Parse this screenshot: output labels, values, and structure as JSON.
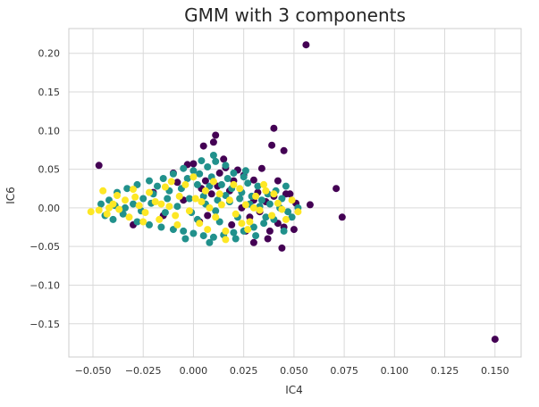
{
  "chart_data": {
    "type": "scatter",
    "title": "GMM with 3 components",
    "xlabel": "IC4",
    "ylabel": "IC6",
    "xlim": [
      -0.062,
      0.163
    ],
    "ylim": [
      -0.193,
      0.232
    ],
    "xticks": [
      -0.05,
      -0.025,
      0.0,
      0.025,
      0.05,
      0.075,
      0.1,
      0.125,
      0.15
    ],
    "xtick_labels": [
      "−0.050",
      "−0.025",
      "0.000",
      "0.025",
      "0.050",
      "0.075",
      "0.100",
      "0.125",
      "0.150"
    ],
    "yticks": [
      -0.15,
      -0.1,
      -0.05,
      0.0,
      0.05,
      0.1,
      0.15,
      0.2
    ],
    "ytick_labels": [
      "−0.15",
      "−0.10",
      "−0.05",
      "0.00",
      "0.05",
      "0.10",
      "0.15",
      "0.20"
    ],
    "grid": true,
    "colors": {
      "cluster0": "#440154",
      "cluster1": "#21918c",
      "cluster2": "#fde725",
      "grid": "#d9d9d9",
      "axes_edge": "#cccccc"
    },
    "series": [
      {
        "cluster": 0,
        "color": "#440154",
        "points": [
          [
            0.056,
            0.211
          ],
          [
            0.15,
            -0.17
          ],
          [
            0.04,
            0.103
          ],
          [
            0.039,
            0.081
          ],
          [
            0.045,
            0.074
          ],
          [
            0.011,
            0.094
          ],
          [
            0.005,
            0.08
          ],
          [
            0.01,
            0.085
          ],
          [
            -0.047,
            0.055
          ],
          [
            0.034,
            0.051
          ],
          [
            0.071,
            0.025
          ],
          [
            0.074,
            -0.012
          ],
          [
            0.058,
            0.004
          ],
          [
            0.051,
            0.006
          ],
          [
            0.046,
            0.018
          ],
          [
            0.048,
            0.018
          ],
          [
            0.03,
            -0.045
          ],
          [
            0.037,
            -0.04
          ],
          [
            0.044,
            -0.052
          ],
          [
            0.05,
            -0.028
          ],
          [
            0.045,
            -0.025
          ],
          [
            0.015,
            0.063
          ],
          [
            0.013,
            0.045
          ],
          [
            0.022,
            0.049
          ],
          [
            0.0,
            0.057
          ],
          [
            0.016,
            0.052
          ],
          [
            -0.003,
            0.056
          ],
          [
            0.02,
            0.035
          ],
          [
            0.025,
            0.042
          ],
          [
            0.03,
            0.036
          ],
          [
            0.028,
            -0.012
          ],
          [
            0.032,
            0.02
          ],
          [
            0.04,
            0.015
          ],
          [
            0.042,
            0.035
          ],
          [
            0.018,
            0.022
          ],
          [
            0.006,
            0.035
          ],
          [
            0.009,
            0.018
          ],
          [
            0.003,
            -0.018
          ],
          [
            -0.008,
            0.033
          ],
          [
            -0.02,
            0.02
          ],
          [
            -0.015,
            -0.01
          ],
          [
            -0.005,
            0.01
          ],
          [
            0.012,
            0.028
          ],
          [
            0.024,
            0.0
          ],
          [
            0.033,
            -0.005
          ],
          [
            0.036,
            0.008
          ],
          [
            0.026,
            -0.03
          ],
          [
            0.019,
            -0.022
          ],
          [
            0.007,
            -0.01
          ],
          [
            -0.03,
            -0.022
          ],
          [
            -0.01,
            0.045
          ],
          [
            0.004,
            0.025
          ],
          [
            0.03,
            0.01
          ],
          [
            0.042,
            -0.02
          ],
          [
            0.038,
            -0.03
          ]
        ]
      },
      {
        "cluster": 1,
        "color": "#21918c",
        "points": [
          [
            0.01,
            0.068
          ],
          [
            0.004,
            0.061
          ],
          [
            0.011,
            0.06
          ],
          [
            0.016,
            0.055
          ],
          [
            -0.005,
            0.051
          ],
          [
            0.0,
            0.048
          ],
          [
            0.007,
            0.053
          ],
          [
            0.02,
            0.045
          ],
          [
            0.025,
            0.04
          ],
          [
            -0.01,
            0.044
          ],
          [
            -0.015,
            0.038
          ],
          [
            -0.022,
            0.035
          ],
          [
            -0.028,
            0.03
          ],
          [
            -0.033,
            0.025
          ],
          [
            -0.038,
            0.02
          ],
          [
            -0.042,
            0.01
          ],
          [
            -0.046,
            0.005
          ],
          [
            -0.044,
            -0.01
          ],
          [
            -0.04,
            -0.015
          ],
          [
            -0.035,
            -0.008
          ],
          [
            -0.03,
            0.005
          ],
          [
            -0.025,
            0.012
          ],
          [
            -0.02,
            0.018
          ],
          [
            -0.012,
            0.022
          ],
          [
            -0.006,
            0.025
          ],
          [
            0.002,
            0.03
          ],
          [
            0.008,
            0.028
          ],
          [
            0.014,
            0.03
          ],
          [
            0.019,
            0.025
          ],
          [
            0.024,
            0.02
          ],
          [
            0.029,
            0.015
          ],
          [
            0.034,
            0.01
          ],
          [
            0.038,
            0.005
          ],
          [
            0.043,
            0.0
          ],
          [
            0.047,
            -0.005
          ],
          [
            0.04,
            -0.015
          ],
          [
            0.035,
            -0.02
          ],
          [
            0.03,
            -0.025
          ],
          [
            0.025,
            -0.03
          ],
          [
            0.02,
            -0.032
          ],
          [
            0.015,
            -0.035
          ],
          [
            0.01,
            -0.038
          ],
          [
            0.005,
            -0.036
          ],
          [
            0.0,
            -0.033
          ],
          [
            -0.005,
            -0.03
          ],
          [
            -0.01,
            -0.028
          ],
          [
            -0.016,
            -0.025
          ],
          [
            -0.022,
            -0.022
          ],
          [
            -0.028,
            -0.018
          ],
          [
            0.032,
            0.028
          ],
          [
            0.027,
            0.032
          ],
          [
            0.036,
            -0.012
          ],
          [
            0.044,
            0.012
          ],
          [
            0.052,
            0.0
          ],
          [
            0.049,
            -0.012
          ],
          [
            0.012,
            0.01
          ],
          [
            0.006,
            0.005
          ],
          [
            -0.002,
            0.012
          ],
          [
            -0.008,
            0.002
          ],
          [
            0.018,
            0.008
          ],
          [
            0.022,
            -0.012
          ],
          [
            0.013,
            -0.018
          ],
          [
            0.002,
            -0.015
          ],
          [
            -0.014,
            -0.006
          ],
          [
            -0.021,
            0.006
          ],
          [
            -0.034,
            0.0
          ],
          [
            0.041,
            0.022
          ],
          [
            0.046,
            0.028
          ],
          [
            0.026,
            0.048
          ],
          [
            0.003,
            0.044
          ],
          [
            -0.003,
            0.038
          ],
          [
            0.009,
            0.04
          ],
          [
            0.017,
            0.038
          ],
          [
            -0.018,
            0.028
          ],
          [
            0.031,
            -0.036
          ],
          [
            0.021,
            -0.04
          ],
          [
            0.008,
            -0.045
          ],
          [
            -0.004,
            -0.04
          ],
          [
            0.045,
            -0.03
          ],
          [
            0.016,
            0.016
          ],
          [
            -0.026,
            -0.004
          ],
          [
            -0.039,
            0.003
          ],
          [
            0.033,
            0.002
          ],
          [
            0.028,
            0.005
          ],
          [
            0.005,
            0.015
          ],
          [
            0.011,
            -0.004
          ],
          [
            -0.001,
            -0.006
          ],
          [
            -0.013,
            0.012
          ],
          [
            0.023,
            0.012
          ],
          [
            0.037,
            0.018
          ]
        ]
      },
      {
        "cluster": 2,
        "color": "#fde725",
        "points": [
          [
            -0.051,
            -0.005
          ],
          [
            -0.047,
            -0.003
          ],
          [
            -0.045,
            0.022
          ],
          [
            -0.043,
            -0.008
          ],
          [
            -0.04,
            0.005
          ],
          [
            -0.037,
            -0.002
          ],
          [
            -0.034,
            0.01
          ],
          [
            -0.032,
            -0.012
          ],
          [
            -0.029,
            0.014
          ],
          [
            -0.027,
            0.003
          ],
          [
            -0.024,
            -0.006
          ],
          [
            -0.022,
            0.02
          ],
          [
            -0.019,
            0.008
          ],
          [
            -0.017,
            -0.015
          ],
          [
            -0.014,
            0.027
          ],
          [
            -0.012,
            0.002
          ],
          [
            -0.009,
            -0.01
          ],
          [
            -0.007,
            0.015
          ],
          [
            -0.004,
            0.03
          ],
          [
            -0.002,
            -0.004
          ],
          [
            0.001,
            0.012
          ],
          [
            0.003,
            -0.02
          ],
          [
            0.006,
            0.022
          ],
          [
            0.008,
            0.0
          ],
          [
            0.011,
            -0.012
          ],
          [
            0.013,
            0.018
          ],
          [
            0.016,
            -0.03
          ],
          [
            0.018,
            0.01
          ],
          [
            0.021,
            -0.008
          ],
          [
            0.023,
            0.025
          ],
          [
            0.026,
            0.004
          ],
          [
            0.028,
            -0.018
          ],
          [
            0.031,
            0.015
          ],
          [
            0.033,
            -0.003
          ],
          [
            0.036,
            0.022
          ],
          [
            0.039,
            -0.01
          ],
          [
            0.042,
            0.006
          ],
          [
            0.046,
            -0.015
          ],
          [
            0.049,
            0.01
          ],
          [
            0.052,
            -0.005
          ],
          [
            0.016,
            -0.041
          ],
          [
            -0.03,
            0.024
          ],
          [
            -0.025,
            -0.018
          ],
          [
            0.01,
            0.034
          ],
          [
            0.02,
            0.03
          ],
          [
            0.0,
            0.04
          ],
          [
            -0.011,
            0.034
          ],
          [
            0.027,
            -0.028
          ],
          [
            0.035,
            0.03
          ],
          [
            -0.038,
            0.016
          ],
          [
            -0.042,
            0.0
          ],
          [
            0.004,
            0.008
          ],
          [
            0.014,
            0.004
          ],
          [
            -0.016,
            0.005
          ],
          [
            0.03,
            0.0
          ],
          [
            -0.008,
            -0.022
          ],
          [
            0.007,
            -0.028
          ],
          [
            0.024,
            -0.02
          ],
          [
            0.04,
            0.018
          ],
          [
            0.044,
            -0.002
          ]
        ]
      }
    ]
  }
}
